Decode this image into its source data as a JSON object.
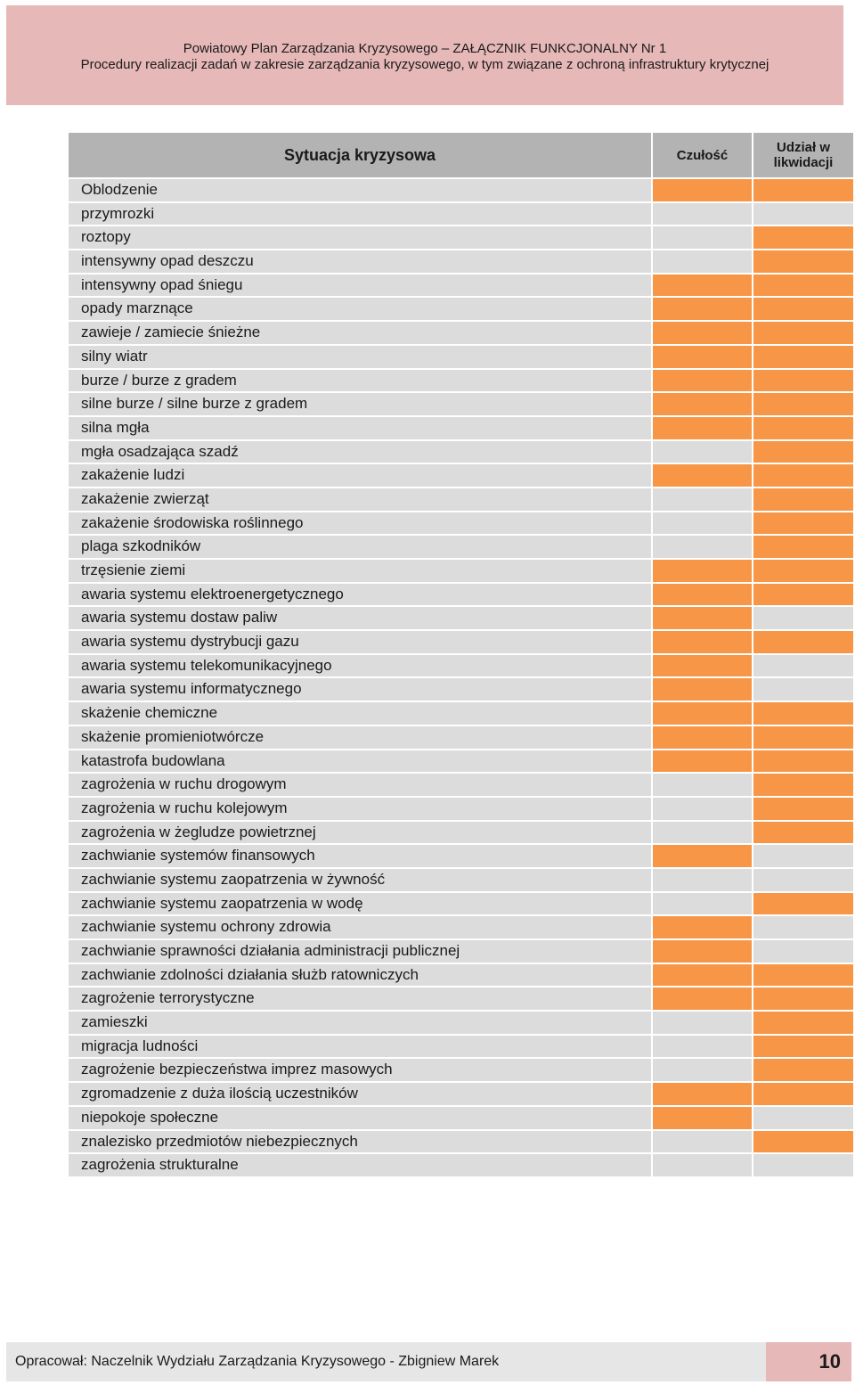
{
  "header": {
    "line1": "Powiatowy Plan Zarządzania Kryzysowego – ZAŁĄCZNIK FUNKCJONALNY Nr 1",
    "line2": "Procedury realizacji zadań w zakresie zarządzania kryzysowego, w tym związane z ochroną infrastruktury krytycznej"
  },
  "table": {
    "columns": {
      "name": "Sytuacja kryzysowa",
      "sensitivity": "Czułość",
      "participation": "Udział w likwidacji"
    },
    "flag_color": "#f79646",
    "rows": [
      {
        "name": "Oblodzenie",
        "sensitivity": true,
        "participation": true
      },
      {
        "name": "przymrozki",
        "sensitivity": false,
        "participation": false
      },
      {
        "name": "roztopy",
        "sensitivity": false,
        "participation": true
      },
      {
        "name": "intensywny opad deszczu",
        "sensitivity": false,
        "participation": true
      },
      {
        "name": "intensywny opad śniegu",
        "sensitivity": true,
        "participation": true
      },
      {
        "name": "opady marznące",
        "sensitivity": true,
        "participation": true
      },
      {
        "name": "zawieje / zamiecie śnieżne",
        "sensitivity": true,
        "participation": true
      },
      {
        "name": "silny wiatr",
        "sensitivity": true,
        "participation": true
      },
      {
        "name": "burze / burze z gradem",
        "sensitivity": true,
        "participation": true
      },
      {
        "name": "silne burze / silne burze z gradem",
        "sensitivity": true,
        "participation": true
      },
      {
        "name": "silna mgła",
        "sensitivity": true,
        "participation": true
      },
      {
        "name": "mgła osadzająca szadź",
        "sensitivity": false,
        "participation": true
      },
      {
        "name": "zakażenie ludzi",
        "sensitivity": true,
        "participation": true
      },
      {
        "name": "zakażenie zwierząt",
        "sensitivity": false,
        "participation": true
      },
      {
        "name": "zakażenie środowiska roślinnego",
        "sensitivity": false,
        "participation": true
      },
      {
        "name": "plaga szkodników",
        "sensitivity": false,
        "participation": true
      },
      {
        "name": "trzęsienie ziemi",
        "sensitivity": true,
        "participation": true
      },
      {
        "name": "awaria systemu elektroenergetycznego",
        "sensitivity": true,
        "participation": true
      },
      {
        "name": "awaria systemu dostaw paliw",
        "sensitivity": true,
        "participation": false
      },
      {
        "name": "awaria systemu dystrybucji gazu",
        "sensitivity": true,
        "participation": true
      },
      {
        "name": "awaria systemu telekomunikacyjnego",
        "sensitivity": true,
        "participation": false
      },
      {
        "name": "awaria systemu informatycznego",
        "sensitivity": true,
        "participation": false
      },
      {
        "name": "skażenie chemiczne",
        "sensitivity": true,
        "participation": true
      },
      {
        "name": "skażenie promieniotwórcze",
        "sensitivity": true,
        "participation": true
      },
      {
        "name": "katastrofa budowlana",
        "sensitivity": true,
        "participation": true
      },
      {
        "name": "zagrożenia w ruchu drogowym",
        "sensitivity": false,
        "participation": true
      },
      {
        "name": "zagrożenia w ruchu kolejowym",
        "sensitivity": false,
        "participation": true
      },
      {
        "name": "zagrożenia w żegludze powietrznej",
        "sensitivity": false,
        "participation": true
      },
      {
        "name": "zachwianie systemów finansowych",
        "sensitivity": true,
        "participation": false
      },
      {
        "name": "zachwianie systemu zaopatrzenia w żywność",
        "sensitivity": false,
        "participation": false
      },
      {
        "name": "zachwianie systemu zaopatrzenia w wodę",
        "sensitivity": false,
        "participation": true
      },
      {
        "name": "zachwianie systemu ochrony zdrowia",
        "sensitivity": true,
        "participation": false
      },
      {
        "name": "zachwianie sprawności działania administracji publicznej",
        "sensitivity": true,
        "participation": false
      },
      {
        "name": "zachwianie zdolności działania służb ratowniczych",
        "sensitivity": true,
        "participation": true
      },
      {
        "name": "zagrożenie terrorystyczne",
        "sensitivity": true,
        "participation": true
      },
      {
        "name": "zamieszki",
        "sensitivity": false,
        "participation": true
      },
      {
        "name": "migracja ludności",
        "sensitivity": false,
        "participation": true
      },
      {
        "name": "zagrożenie bezpieczeństwa imprez masowych",
        "sensitivity": false,
        "participation": true
      },
      {
        "name": "zgromadzenie z duża ilością uczestników",
        "sensitivity": true,
        "participation": true
      },
      {
        "name": "niepokoje społeczne",
        "sensitivity": true,
        "participation": false
      },
      {
        "name": "znalezisko przedmiotów niebezpiecznych",
        "sensitivity": false,
        "participation": true
      },
      {
        "name": "zagrożenia strukturalne",
        "sensitivity": false,
        "participation": false
      }
    ]
  },
  "footer": {
    "author": "Opracował: Naczelnik Wydziału Zarządzania Kryzysowego - Zbigniew Marek",
    "page_number": "10"
  }
}
